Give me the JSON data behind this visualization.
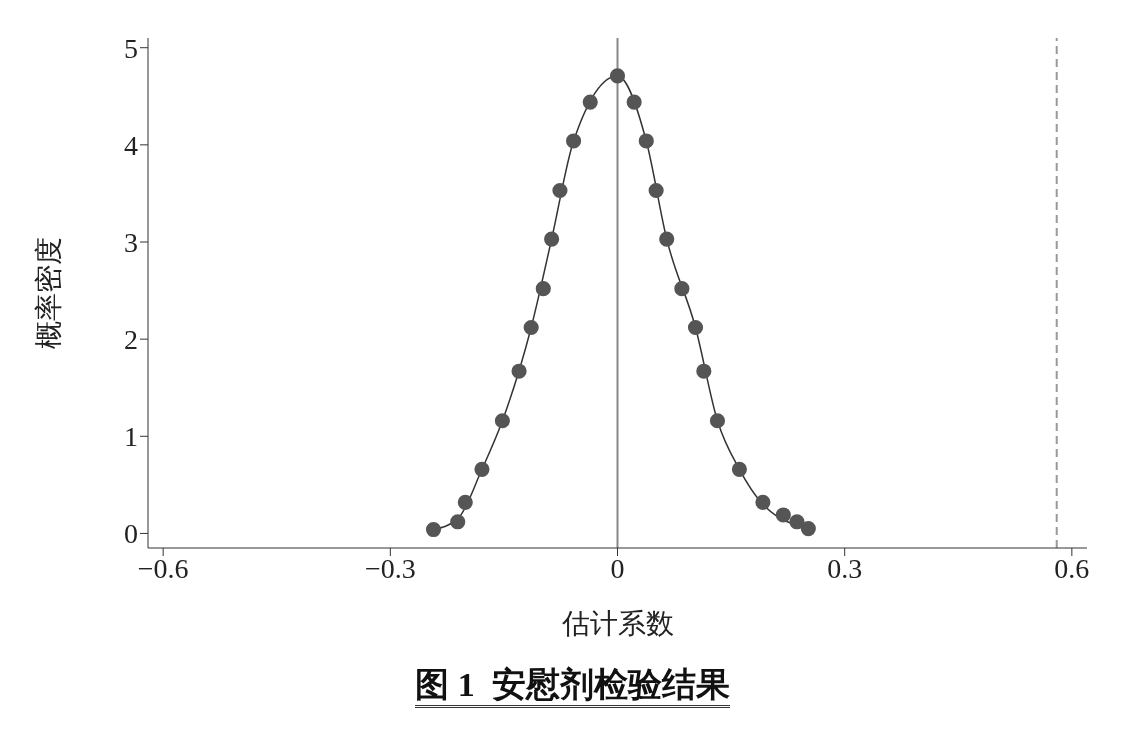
{
  "chart_data": {
    "type": "scatter",
    "title": "图 1  安慰剂检验结果",
    "xlabel": "估计系数",
    "ylabel": "概率密度",
    "xlim": [
      -0.62,
      0.62
    ],
    "xticks": [
      {
        "value": -0.6,
        "label": "−0.6"
      },
      {
        "value": -0.3,
        "label": "−0.3"
      },
      0,
      0.3,
      0.6
    ],
    "ylim": [
      -0.15,
      5.1
    ],
    "yticks": [
      0,
      1,
      2,
      3,
      4,
      5
    ],
    "grid": false,
    "legend": false,
    "series": [
      {
        "color": "#555555",
        "marker": "circle",
        "x": [
          -0.243,
          -0.211,
          -0.201,
          -0.179,
          -0.152,
          -0.13,
          -0.114,
          -0.098,
          -0.087,
          -0.076,
          -0.058,
          -0.036,
          0,
          0.022,
          0.038,
          0.051,
          0.065,
          0.085,
          0.103,
          0.114,
          0.132,
          0.161,
          0.192,
          0.219,
          0.237,
          0.252
        ],
        "values": [
          0.04,
          0.12,
          0.32,
          0.66,
          1.16,
          1.67,
          2.12,
          2.52,
          3.03,
          3.53,
          4.04,
          4.44,
          4.71,
          4.44,
          4.04,
          3.53,
          3.03,
          2.52,
          2.12,
          1.67,
          1.16,
          0.66,
          0.32,
          0.19,
          0.12,
          0.05
        ]
      },
      {
        "type": "line",
        "color": "#333333",
        "line_style": "solid",
        "marker": "none",
        "x": [
          -0.243,
          -0.211,
          -0.179,
          -0.152,
          -0.114,
          -0.087,
          -0.058,
          0,
          0.038,
          0.065,
          0.103,
          0.132,
          0.161,
          0.192,
          0.252
        ],
        "values": [
          0.04,
          0.15,
          0.66,
          1.16,
          2.12,
          3.03,
          4.04,
          4.71,
          4.04,
          3.03,
          2.12,
          1.16,
          0.66,
          0.3,
          0.05
        ]
      }
    ],
    "ref_lines": [
      {
        "axis": "x",
        "value": 0,
        "color": "#888888",
        "line_style": "solid"
      },
      {
        "axis": "x",
        "value": 0.58,
        "color": "#999999",
        "line_style": "dashed"
      }
    ]
  }
}
